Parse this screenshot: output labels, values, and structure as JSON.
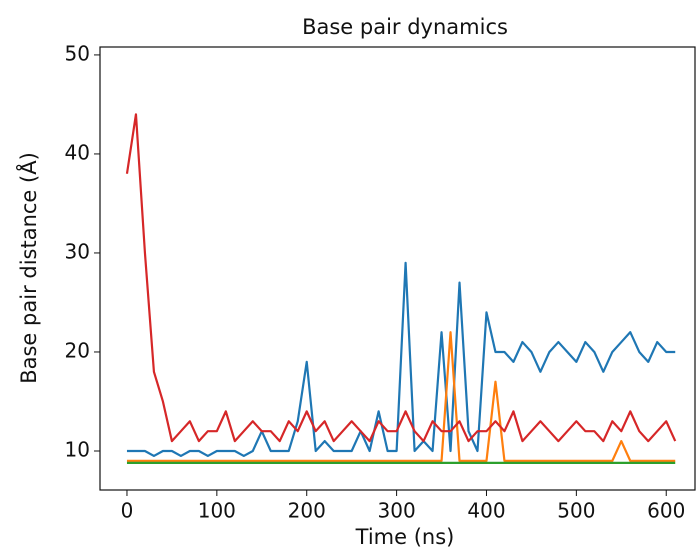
{
  "chart_data": {
    "type": "line",
    "title": "Base pair dynamics",
    "x_label": "Time (ns)",
    "y_label": "Base pair distance (Å)",
    "x": [
      0,
      10,
      20,
      30,
      40,
      50,
      60,
      70,
      80,
      90,
      100,
      110,
      120,
      130,
      140,
      150,
      160,
      170,
      180,
      190,
      200,
      210,
      220,
      230,
      240,
      250,
      260,
      270,
      280,
      290,
      300,
      310,
      320,
      330,
      340,
      350,
      360,
      370,
      380,
      390,
      400,
      410,
      420,
      430,
      440,
      450,
      460,
      470,
      480,
      490,
      500,
      510,
      520,
      530,
      540,
      550,
      560,
      570,
      580,
      590,
      600,
      610
    ],
    "series": [
      {
        "name": "blue",
        "color": "#1f77b4",
        "values": [
          10,
          10,
          10,
          9.5,
          10,
          10,
          9.5,
          10,
          10,
          9.5,
          10,
          10,
          10,
          9.5,
          10,
          12,
          10,
          10,
          10,
          13,
          19,
          10,
          11,
          10,
          10,
          10,
          12,
          10,
          14,
          10,
          10,
          29,
          10,
          11,
          10,
          22,
          10,
          27,
          12,
          10,
          24,
          20,
          20,
          19,
          21,
          20,
          18,
          20,
          21,
          20,
          19,
          21,
          20,
          18,
          20,
          21,
          22,
          20,
          19,
          21,
          20,
          20
        ]
      },
      {
        "name": "orange",
        "color": "#ff7f0e",
        "values": [
          9,
          9,
          9,
          9,
          9,
          9,
          9,
          9,
          9,
          9,
          9,
          9,
          9,
          9,
          9,
          9,
          9,
          9,
          9,
          9,
          9,
          9,
          9,
          9,
          9,
          9,
          9,
          9,
          9,
          9,
          9,
          9,
          9,
          9,
          9,
          9,
          22,
          9,
          9,
          9,
          9,
          17,
          9,
          9,
          9,
          9,
          9,
          9,
          9,
          9,
          9,
          9,
          9,
          9,
          9,
          11,
          9,
          9,
          9,
          9,
          9,
          9
        ]
      },
      {
        "name": "green",
        "color": "#2ca02c",
        "values": [
          8.8,
          8.8,
          8.8,
          8.8,
          8.8,
          8.8,
          8.8,
          8.8,
          8.8,
          8.8,
          8.8,
          8.8,
          8.8,
          8.8,
          8.8,
          8.8,
          8.8,
          8.8,
          8.8,
          8.8,
          8.8,
          8.8,
          8.8,
          8.8,
          8.8,
          8.8,
          8.8,
          8.8,
          8.8,
          8.8,
          8.8,
          8.8,
          8.8,
          8.8,
          8.8,
          8.8,
          8.8,
          8.8,
          8.8,
          8.8,
          8.8,
          8.8,
          8.8,
          8.8,
          8.8,
          8.8,
          8.8,
          8.8,
          8.8,
          8.8,
          8.8,
          8.8,
          8.8,
          8.8,
          8.8,
          8.8,
          8.8,
          8.8,
          8.8,
          8.8,
          8.8,
          8.8
        ]
      },
      {
        "name": "red",
        "color": "#d62728",
        "values": [
          38,
          44,
          30,
          18,
          15,
          11,
          12,
          13,
          11,
          12,
          12,
          14,
          11,
          12,
          13,
          12,
          12,
          11,
          13,
          12,
          14,
          12,
          13,
          11,
          12,
          13,
          12,
          11,
          13,
          12,
          12,
          14,
          12,
          11,
          13,
          12,
          12,
          13,
          11,
          12,
          12,
          13,
          12,
          14,
          11,
          12,
          13,
          12,
          11,
          12,
          13,
          12,
          12,
          11,
          13,
          12,
          14,
          12,
          11,
          12,
          13,
          11
        ]
      }
    ],
    "xlim": [
      -30,
      632
    ],
    "ylim": [
      6.06,
      50.8
    ],
    "xticks": [
      0,
      100,
      200,
      300,
      400,
      500,
      600
    ],
    "yticks": [
      10,
      20,
      30,
      40,
      50
    ]
  }
}
